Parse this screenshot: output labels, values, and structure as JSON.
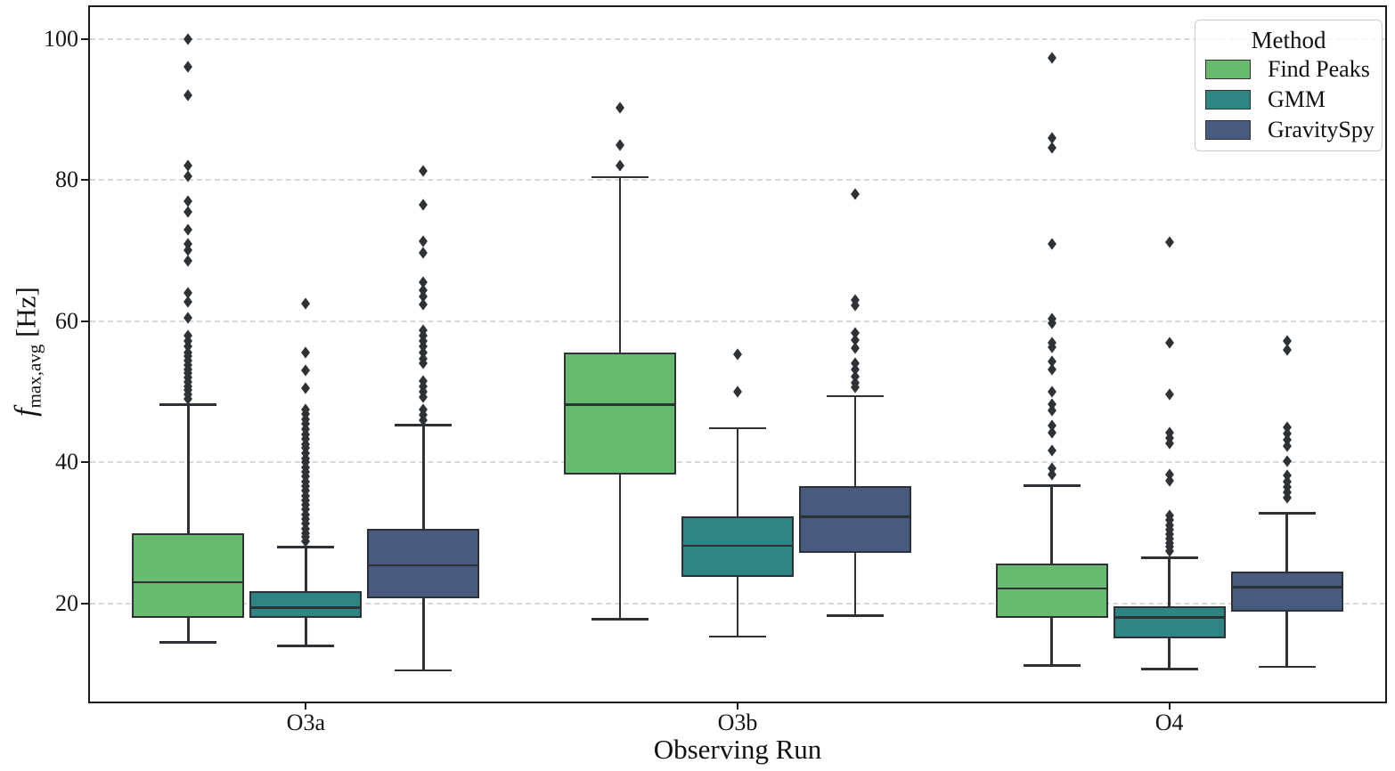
{
  "figure": {
    "background": "#ffffff",
    "spine_color": "#1b1b1b",
    "grid_color": "#d8d8d8",
    "box_edge_color": "#2e3136",
    "outlier_color": "#2e3136"
  },
  "ylabel": {
    "fvar": "f",
    "sub": "max,avg",
    "unit": " [Hz]"
  },
  "chart_data": {
    "type": "grouped_boxplot",
    "xlabel": "Observing Run",
    "ylabel_text": "f_max,avg [Hz]",
    "categories": [
      "O3a",
      "O3b",
      "O4"
    ],
    "yticks": [
      20,
      40,
      60,
      80,
      100
    ],
    "ylim": [
      6.1,
      104.5
    ],
    "grid": "dashed horizontal at yticks",
    "legend": {
      "title": "Method",
      "position": "upper right"
    },
    "series": [
      {
        "name": "Find Peaks",
        "color": "#68ba6e",
        "boxes": [
          {
            "category": "O3a",
            "whisker_low": 14.5,
            "q1": 18.0,
            "median": 23.0,
            "q3": 30.0,
            "whisker_high": 48.2,
            "outliers": [
              100,
              96,
              92,
              82,
              80.5,
              77,
              75.5,
              73,
              71,
              70,
              68.5,
              64,
              62.7,
              60.5,
              58,
              57.2,
              56.4,
              55.6,
              55,
              54.4,
              53.8,
              53.2,
              52.6,
              52,
              51.4,
              50.8,
              50.2,
              49.6,
              49
            ]
          },
          {
            "category": "O3b",
            "whisker_low": 17.8,
            "q1": 38.3,
            "median": 48.2,
            "q3": 55.5,
            "whisker_high": 80.4,
            "outliers": [
              90.3,
              85,
              82
            ]
          },
          {
            "category": "O4",
            "whisker_low": 11.2,
            "q1": 17.9,
            "median": 22.1,
            "q3": 25.6,
            "whisker_high": 36.7,
            "outliers": [
              97.3,
              86,
              84.6,
              71,
              60.3,
              59.7,
              57,
              56.3,
              54.3,
              53.2,
              50,
              48.2,
              47.3,
              45.2,
              44.2,
              41.7,
              39.2,
              38.3
            ]
          }
        ]
      },
      {
        "name": "GMM",
        "color": "#2f8584",
        "boxes": [
          {
            "category": "O3a",
            "whisker_low": 14.0,
            "q1": 17.9,
            "median": 19.4,
            "q3": 21.7,
            "whisker_high": 28.0,
            "outliers": [
              62.5,
              55.5,
              53,
              50.5,
              47.5,
              46.8,
              46.1,
              45.4,
              44.7,
              44,
              43.3,
              42.6,
              42,
              41.3,
              40.6,
              40,
              39.3,
              38.6,
              38,
              37.3,
              36.6,
              36,
              35.3,
              34.6,
              34,
              33.3,
              32.6,
              32,
              31.3,
              30.6,
              30,
              29.4,
              28.8
            ]
          },
          {
            "category": "O3b",
            "whisker_low": 15.3,
            "q1": 23.8,
            "median": 28.2,
            "q3": 32.4,
            "whisker_high": 44.8,
            "outliers": [
              55.3,
              50
            ]
          },
          {
            "category": "O4",
            "whisker_low": 10.7,
            "q1": 15.1,
            "median": 18.0,
            "q3": 19.6,
            "whisker_high": 26.5,
            "outliers": [
              71.2,
              57,
              49.6,
              44.2,
              43.4,
              42.7,
              38.3,
              37.4,
              32.5,
              31.8,
              31.1,
              30.4,
              29.8,
              29.2,
              28.6,
              28,
              27.4
            ]
          }
        ]
      },
      {
        "name": "GravitySpy",
        "color": "#475a80",
        "boxes": [
          {
            "category": "O3a",
            "whisker_low": 10.5,
            "q1": 20.7,
            "median": 25.4,
            "q3": 30.6,
            "whisker_high": 45.3,
            "outliers": [
              81.3,
              76.5,
              71.3,
              69.7,
              65.5,
              64.4,
              63.5,
              62.4,
              58.7,
              58,
              57.2,
              56.4,
              55.5,
              54.7,
              54,
              51.5,
              50.7,
              50,
              49.3,
              47.5,
              46.7,
              46
            ]
          },
          {
            "category": "O3b",
            "whisker_low": 18.3,
            "q1": 27.2,
            "median": 32.3,
            "q3": 36.6,
            "whisker_high": 49.4,
            "outliers": [
              78,
              63,
              62.2,
              58.3,
              57.3,
              56.2,
              54,
              53.1,
              52.2,
              51.3,
              50.6
            ]
          },
          {
            "category": "O4",
            "whisker_low": 11.0,
            "q1": 18.8,
            "median": 22.3,
            "q3": 24.5,
            "whisker_high": 32.8,
            "outliers": [
              57.2,
              55.9,
              45,
              44.1,
              43.2,
              42.3,
              40.1,
              38.2,
              37.3,
              36.5,
              35.7,
              35
            ]
          }
        ]
      }
    ]
  }
}
